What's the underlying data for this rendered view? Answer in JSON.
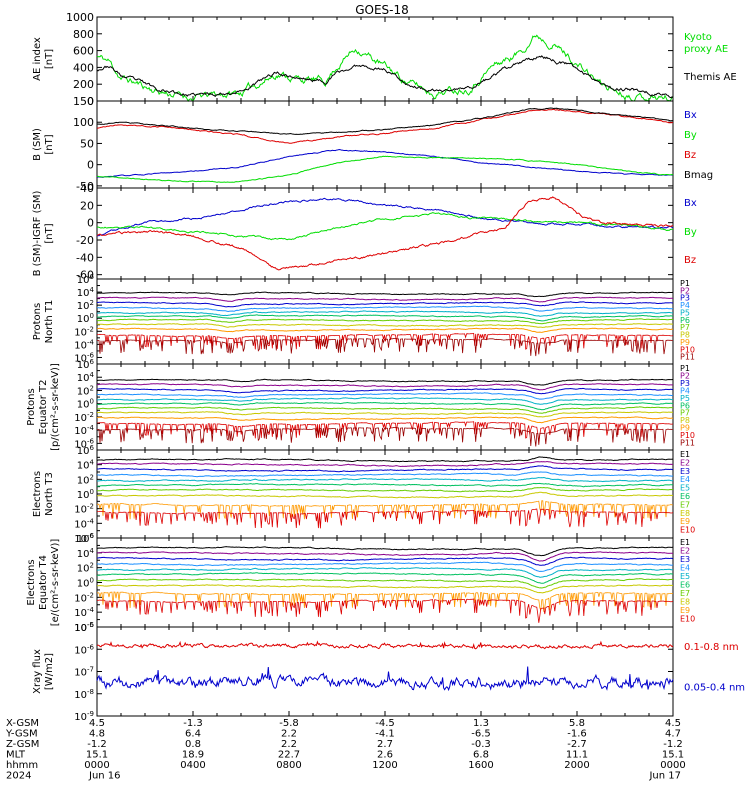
{
  "title": "GOES-18",
  "chart_data": [
    {
      "type": "line",
      "panel": "ae",
      "ylabel": [
        "AE index",
        "[nT]"
      ],
      "ylim": [
        0,
        1000
      ],
      "yticks": [
        "0",
        "200",
        "400",
        "600",
        "800",
        "1000"
      ],
      "series": [
        {
          "name": "Kyoto proxy AE",
          "color": "#00dd00",
          "label_lines": [
            "Kyoto",
            "proxy AE"
          ],
          "base": 200,
          "seed": 11,
          "noise": 60,
          "knots": [
            [
              0,
              530
            ],
            [
              0.5,
              470
            ],
            [
              1,
              280
            ],
            [
              2.5,
              120
            ],
            [
              4,
              40
            ],
            [
              6,
              100
            ],
            [
              7.5,
              330
            ],
            [
              8.5,
              260
            ],
            [
              9.5,
              230
            ],
            [
              10,
              420
            ],
            [
              10.8,
              640
            ],
            [
              11.5,
              500
            ],
            [
              12.3,
              350
            ],
            [
              13,
              220
            ],
            [
              14,
              100
            ],
            [
              15.5,
              170
            ],
            [
              16.5,
              420
            ],
            [
              17.5,
              560
            ],
            [
              18.3,
              800
            ],
            [
              19,
              700
            ],
            [
              20,
              440
            ],
            [
              21,
              200
            ],
            [
              22,
              90
            ],
            [
              24,
              30
            ]
          ]
        },
        {
          "name": "Themis AE",
          "color": "#000000",
          "label_lines": [
            "Themis AE"
          ],
          "base": 200,
          "seed": 23,
          "noise": 30,
          "knots": [
            [
              0,
              380
            ],
            [
              0.5,
              420
            ],
            [
              1,
              300
            ],
            [
              2.5,
              150
            ],
            [
              4,
              60
            ],
            [
              6,
              120
            ],
            [
              7.5,
              340
            ],
            [
              8.5,
              270
            ],
            [
              9.5,
              230
            ],
            [
              10,
              330
            ],
            [
              11,
              430
            ],
            [
              12,
              380
            ],
            [
              13,
              200
            ],
            [
              14,
              110
            ],
            [
              15.5,
              150
            ],
            [
              16.5,
              300
            ],
            [
              17.5,
              430
            ],
            [
              18.5,
              540
            ],
            [
              19.5,
              450
            ],
            [
              20.5,
              300
            ],
            [
              21.5,
              160
            ],
            [
              24,
              60
            ]
          ]
        }
      ]
    },
    {
      "type": "line",
      "panel": "bsm",
      "ylabel": [
        "B (SM)",
        "[nT]"
      ],
      "ylim": [
        -55,
        150
      ],
      "yticks": [
        "-50",
        "0",
        "50",
        "100",
        "150"
      ],
      "ytick_values": [
        -50,
        0,
        50,
        100,
        150
      ],
      "series": [
        {
          "name": "Bx",
          "color": "#0000cc",
          "seed": 31,
          "noise": 1.5,
          "knots": [
            [
              0,
              -30
            ],
            [
              3,
              -20
            ],
            [
              6,
              -5
            ],
            [
              8,
              20
            ],
            [
              10,
              35
            ],
            [
              12,
              30
            ],
            [
              14,
              20
            ],
            [
              16,
              5
            ],
            [
              18,
              -5
            ],
            [
              20,
              -15
            ],
            [
              22,
              -22
            ],
            [
              24,
              -25
            ]
          ]
        },
        {
          "name": "By",
          "color": "#00dd00",
          "seed": 37,
          "noise": 1.5,
          "knots": [
            [
              0,
              -28
            ],
            [
              3,
              -38
            ],
            [
              6,
              -40
            ],
            [
              8,
              -25
            ],
            [
              10,
              5
            ],
            [
              12,
              20
            ],
            [
              14,
              15
            ],
            [
              16,
              15
            ],
            [
              18,
              10
            ],
            [
              20,
              0
            ],
            [
              22,
              -15
            ],
            [
              24,
              -25
            ]
          ]
        },
        {
          "name": "Bz",
          "color": "#dd0000",
          "seed": 41,
          "noise": 2,
          "knots": [
            [
              0,
              85
            ],
            [
              1,
              95
            ],
            [
              3,
              88
            ],
            [
              6,
              70
            ],
            [
              8,
              50
            ],
            [
              10,
              65
            ],
            [
              12,
              75
            ],
            [
              14,
              85
            ],
            [
              16,
              105
            ],
            [
              18,
              125
            ],
            [
              19,
              130
            ],
            [
              21,
              120
            ],
            [
              24,
              100
            ]
          ]
        },
        {
          "name": "Bmag",
          "color": "#000000",
          "seed": 43,
          "noise": 1.5,
          "knots": [
            [
              0,
              95
            ],
            [
              1,
              100
            ],
            [
              3,
              90
            ],
            [
              6,
              78
            ],
            [
              8,
              72
            ],
            [
              10,
              76
            ],
            [
              12,
              82
            ],
            [
              14,
              93
            ],
            [
              16,
              110
            ],
            [
              18,
              130
            ],
            [
              19,
              133
            ],
            [
              21,
              122
            ],
            [
              24,
              103
            ]
          ]
        }
      ]
    },
    {
      "type": "line",
      "panel": "bdiff",
      "ylabel": [
        "B (SM)-IGRF (SM)",
        "[nT]"
      ],
      "ylim": [
        -65,
        40
      ],
      "yticks": [
        "-60",
        "-40",
        "-20",
        "0",
        "20",
        "40"
      ],
      "ytick_values": [
        -60,
        -40,
        -20,
        0,
        20,
        40
      ],
      "series": [
        {
          "name": "Bx",
          "color": "#0000cc",
          "seed": 53,
          "noise": 1.5,
          "knots": [
            [
              0,
              -15
            ],
            [
              2,
              0
            ],
            [
              4,
              5
            ],
            [
              6,
              15
            ],
            [
              8,
              25
            ],
            [
              10,
              28
            ],
            [
              12,
              20
            ],
            [
              14,
              15
            ],
            [
              16,
              5
            ],
            [
              18,
              0
            ],
            [
              20,
              -2
            ],
            [
              22,
              -5
            ],
            [
              24,
              -5
            ]
          ]
        },
        {
          "name": "By",
          "color": "#00dd00",
          "seed": 59,
          "noise": 1.5,
          "knots": [
            [
              0,
              -5
            ],
            [
              2,
              -5
            ],
            [
              4,
              -10
            ],
            [
              6,
              -15
            ],
            [
              8,
              -20
            ],
            [
              10,
              -5
            ],
            [
              12,
              5
            ],
            [
              14,
              10
            ],
            [
              16,
              5
            ],
            [
              18,
              2
            ],
            [
              20,
              0
            ],
            [
              22,
              -3
            ],
            [
              24,
              -8
            ]
          ]
        },
        {
          "name": "Bz",
          "color": "#dd0000",
          "seed": 61,
          "noise": 2,
          "knots": [
            [
              0,
              -15
            ],
            [
              2,
              -10
            ],
            [
              4,
              -15
            ],
            [
              6,
              -30
            ],
            [
              7.5,
              -55
            ],
            [
              9,
              -48
            ],
            [
              11,
              -40
            ],
            [
              13,
              -30
            ],
            [
              15,
              -20
            ],
            [
              17,
              -5
            ],
            [
              18,
              25
            ],
            [
              19,
              30
            ],
            [
              20,
              10
            ],
            [
              21,
              0
            ],
            [
              24,
              -5
            ]
          ]
        }
      ]
    },
    {
      "type": "line",
      "panel": "p1",
      "ylabel": [
        "Protons",
        "North T1"
      ],
      "ylog": true,
      "ylim_exp": [
        -7,
        6
      ],
      "yticks_exp": [
        -6,
        -4,
        -2,
        0,
        2,
        4,
        6
      ],
      "channels": [
        "P1",
        "P2",
        "P3",
        "P4",
        "P5",
        "P6",
        "P7",
        "P8",
        "P9",
        "P10",
        "P11"
      ],
      "levels": [
        3.8,
        3.0,
        2.3,
        1.6,
        0.9,
        0.3,
        -0.3,
        -1.0,
        -1.7,
        -2.6,
        -3.3
      ],
      "noisy_from": 9,
      "dips": [
        [
          5.5,
          -0.4
        ],
        [
          18.5,
          -0.5
        ]
      ]
    },
    {
      "type": "line",
      "panel": "p2",
      "ylabel": [
        "Protons",
        "Equator T2",
        "[p/(cm²-s-sr-keV)]"
      ],
      "ylog": true,
      "ylim_exp": [
        -7,
        6
      ],
      "yticks_exp": [
        -6,
        -4,
        -2,
        0,
        2,
        4,
        6
      ],
      "channels": [
        "P1",
        "P2",
        "P3",
        "P4",
        "P5",
        "P6",
        "P7",
        "P8",
        "P9",
        "P10",
        "P11"
      ],
      "levels": [
        3.5,
        2.8,
        2.1,
        1.4,
        0.7,
        0.0,
        -0.7,
        -1.4,
        -2.2,
        -3.0,
        -3.8
      ],
      "noisy_from": 9,
      "dips": [
        [
          6,
          -0.3
        ],
        [
          18.5,
          -0.7
        ]
      ]
    },
    {
      "type": "line",
      "panel": "e1",
      "ylabel": [
        "Electrons",
        "North T3"
      ],
      "ylog": true,
      "ylim_exp": [
        -6,
        6
      ],
      "yticks_exp": [
        -6,
        -4,
        -2,
        0,
        2,
        4,
        6
      ],
      "channels": [
        "E1",
        "E2",
        "E3",
        "E4",
        "E5",
        "E6",
        "E7",
        "E8",
        "E9",
        "E10"
      ],
      "levels": [
        4.6,
        4.0,
        3.3,
        2.6,
        1.9,
        1.2,
        0.5,
        -0.3,
        -1.5,
        -2.5
      ],
      "noisy_from": 8,
      "dips": [
        [
          18.5,
          0.4
        ]
      ]
    },
    {
      "type": "line",
      "panel": "e2",
      "ylabel": [
        "Electrons",
        "Equator T4",
        "[e/(cm²-s-sr-keV)]"
      ],
      "ylog": true,
      "ylim_exp": [
        -6,
        6
      ],
      "yticks_exp": [
        -6,
        -4,
        -2,
        0,
        2,
        4,
        6
      ],
      "channels": [
        "E1",
        "E2",
        "E3",
        "E4",
        "E5",
        "E6",
        "E7",
        "E8",
        "E9",
        "E10"
      ],
      "levels": [
        4.6,
        3.9,
        3.2,
        2.5,
        1.8,
        1.1,
        0.3,
        -0.5,
        -1.5,
        -2.5
      ],
      "noisy_from": 8,
      "dips": [
        [
          18.5,
          -1.0
        ]
      ]
    },
    {
      "type": "line",
      "panel": "xray",
      "ylabel": [
        "Xray flux",
        "[W/m2]"
      ],
      "ylog": true,
      "ylim_exp": [
        -9,
        -5
      ],
      "yticks_exp": [
        -9,
        -8,
        -7,
        -6,
        -5
      ],
      "series": [
        {
          "name": "0.1-0.8 nm",
          "color": "#dd0000",
          "level": -5.85,
          "noise": 0.12,
          "seed": 71
        },
        {
          "name": "0.05-0.4 nm",
          "color": "#0000cc",
          "level": -7.5,
          "noise": 0.35,
          "seed": 73
        }
      ]
    }
  ],
  "channel_colors": [
    "#000000",
    "#8b008b",
    "#0000cc",
    "#1e90ff",
    "#00b0c8",
    "#00c060",
    "#66cc00",
    "#c8c800",
    "#ff9900",
    "#dd0000",
    "#990000"
  ],
  "xaxis": {
    "rows": [
      {
        "label": "X-GSM",
        "values": [
          "4.5",
          "-1.3",
          "-5.8",
          "-4.5",
          "1.3",
          "5.8",
          "4.5"
        ]
      },
      {
        "label": "Y-GSM",
        "values": [
          "4.8",
          "6.4",
          "2.2",
          "-4.1",
          "-6.5",
          "-1.6",
          "4.7"
        ]
      },
      {
        "label": "Z-GSM",
        "values": [
          "-1.2",
          "0.8",
          "2.2",
          "2.7",
          "-0.3",
          "-2.7",
          "-1.2"
        ]
      },
      {
        "label": "MLT",
        "values": [
          "15.1",
          "18.9",
          "22.7",
          "2.6",
          "6.8",
          "11.1",
          "15.1"
        ]
      },
      {
        "label": "hhmm",
        "values": [
          "0000",
          "0400",
          "0800",
          "1200",
          "1600",
          "2000",
          "0000"
        ]
      },
      {
        "label": "2024",
        "values": [
          "Jun 16",
          "",
          "",
          "",
          "",
          "",
          "Jun 17"
        ]
      }
    ],
    "hours": [
      0,
      4,
      8,
      12,
      16,
      20,
      24
    ]
  }
}
